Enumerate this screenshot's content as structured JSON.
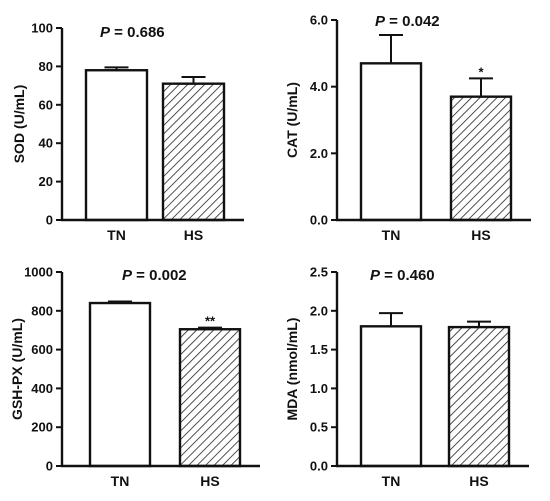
{
  "colors": {
    "axis": "#111111",
    "bar_fill_tn": "#ffffff",
    "bar_fill_hs": "#ffffff",
    "hatch": "#222222"
  },
  "chart_data": [
    {
      "type": "bar",
      "title_prefix": "P",
      "title_rest": " = 0.686",
      "ylabel": "SOD (U/mL)",
      "xlabel": "",
      "categories": [
        "TN",
        "HS"
      ],
      "values": [
        78,
        71
      ],
      "errors": [
        1.5,
        3.5
      ],
      "ylim": [
        0,
        100
      ],
      "yticks": [
        0,
        20,
        40,
        60,
        80,
        100
      ],
      "ytick_labels": [
        "0",
        "20",
        "40",
        "60",
        "80",
        "100"
      ],
      "significance": [
        "",
        ""
      ],
      "patterns": [
        "solid",
        "hatched"
      ]
    },
    {
      "type": "bar",
      "title_prefix": "P",
      "title_rest": " = 0.042",
      "ylabel": "CAT (U/mL)",
      "xlabel": "",
      "categories": [
        "TN",
        "HS"
      ],
      "values": [
        4.7,
        3.7
      ],
      "errors": [
        0.85,
        0.55
      ],
      "ylim": [
        0,
        6
      ],
      "yticks": [
        0,
        2,
        4,
        6
      ],
      "ytick_labels": [
        "0.0",
        "2.0",
        "4.0",
        "6.0"
      ],
      "significance": [
        "",
        "*"
      ],
      "patterns": [
        "solid",
        "hatched"
      ]
    },
    {
      "type": "bar",
      "title_prefix": "P",
      "title_rest": " = 0.002",
      "ylabel": "GSH-PX (U/mL)",
      "xlabel": "",
      "categories": [
        "TN",
        "HS"
      ],
      "values": [
        840,
        705
      ],
      "errors": [
        8,
        8
      ],
      "ylim": [
        0,
        1000
      ],
      "yticks": [
        0,
        200,
        400,
        600,
        800,
        1000
      ],
      "ytick_labels": [
        "0",
        "200",
        "400",
        "600",
        "800",
        "1000"
      ],
      "significance": [
        "",
        "**"
      ],
      "patterns": [
        "solid",
        "hatched"
      ]
    },
    {
      "type": "bar",
      "title_prefix": "P",
      "title_rest": " = 0.460",
      "ylabel": "MDA (nmol/mL)",
      "xlabel": "",
      "categories": [
        "TN",
        "HS"
      ],
      "values": [
        1.8,
        1.79
      ],
      "errors": [
        0.17,
        0.07
      ],
      "ylim": [
        0,
        2.5
      ],
      "yticks": [
        0,
        0.5,
        1,
        1.5,
        2,
        2.5
      ],
      "ytick_labels": [
        "0.0",
        "0.5",
        "1.0",
        "1.5",
        "2.0",
        "2.5"
      ],
      "significance": [
        "",
        ""
      ],
      "patterns": [
        "solid",
        "hatched"
      ]
    }
  ]
}
